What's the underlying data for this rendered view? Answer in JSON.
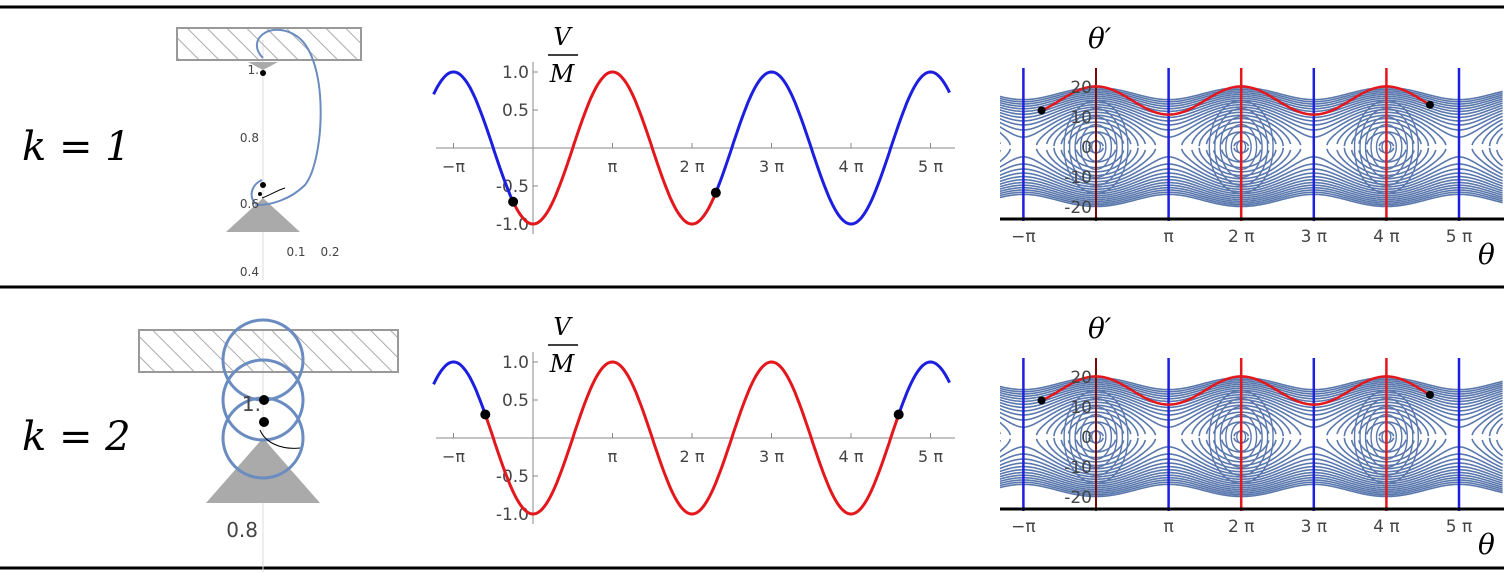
{
  "rows": [
    {
      "k_label": "k = 1",
      "mech": {
        "ticks_y": [
          "1.",
          "0.8",
          "0.6",
          "0.4"
        ],
        "ticks_x": [
          "0.1",
          "0.2"
        ]
      },
      "potential": {
        "ylabel_num": "V",
        "ylabel_den": "M",
        "yticks": [
          "1.0",
          "0.5",
          "-0.5",
          "-1.0"
        ],
        "xticks": [
          "−π",
          "π",
          "2 π",
          "3 π",
          "4 π",
          "5 π"
        ],
        "red_range": [
          -0.25,
          2.3
        ],
        "markers": [
          -0.25,
          2.3
        ]
      },
      "phase": {
        "ylabel": "θ′",
        "xlabel": "θ",
        "yticks": [
          "20",
          "10",
          "0",
          "-10",
          "-20"
        ],
        "xticks": [
          "−π",
          "π",
          "2 π",
          "3 π",
          "4 π",
          "5 π"
        ],
        "markers": [
          [
            -0.75,
            15
          ],
          [
            4.6,
            15
          ]
        ]
      }
    },
    {
      "k_label": "k = 2",
      "mech": {
        "ticks_y": [
          "1.",
          "0.8"
        ],
        "ticks_x": []
      },
      "potential": {
        "ylabel_num": "V",
        "ylabel_den": "M",
        "yticks": [
          "1.0",
          "0.5",
          "-0.5",
          "-1.0"
        ],
        "xticks": [
          "−π",
          "π",
          "2 π",
          "3 π",
          "4 π",
          "5 π"
        ],
        "red_range": [
          -0.6,
          4.6
        ],
        "markers": [
          -0.6,
          4.6
        ]
      },
      "phase": {
        "ylabel": "θ′",
        "xlabel": "θ",
        "yticks": [
          "20",
          "10",
          "0",
          "-10",
          "-20"
        ],
        "xticks": [
          "−π",
          "π",
          "2 π",
          "3 π",
          "4 π",
          "5 π"
        ],
        "markers": [
          [
            -0.75,
            15
          ],
          [
            4.6,
            15
          ]
        ]
      }
    }
  ],
  "colors": {
    "red": "#e3171c",
    "blue": "#1c1ee0",
    "contour": "#5a78ad",
    "curve": "#6a8cc0",
    "darkred": "#7a0a0a",
    "gray": "#aaaaaa"
  }
}
